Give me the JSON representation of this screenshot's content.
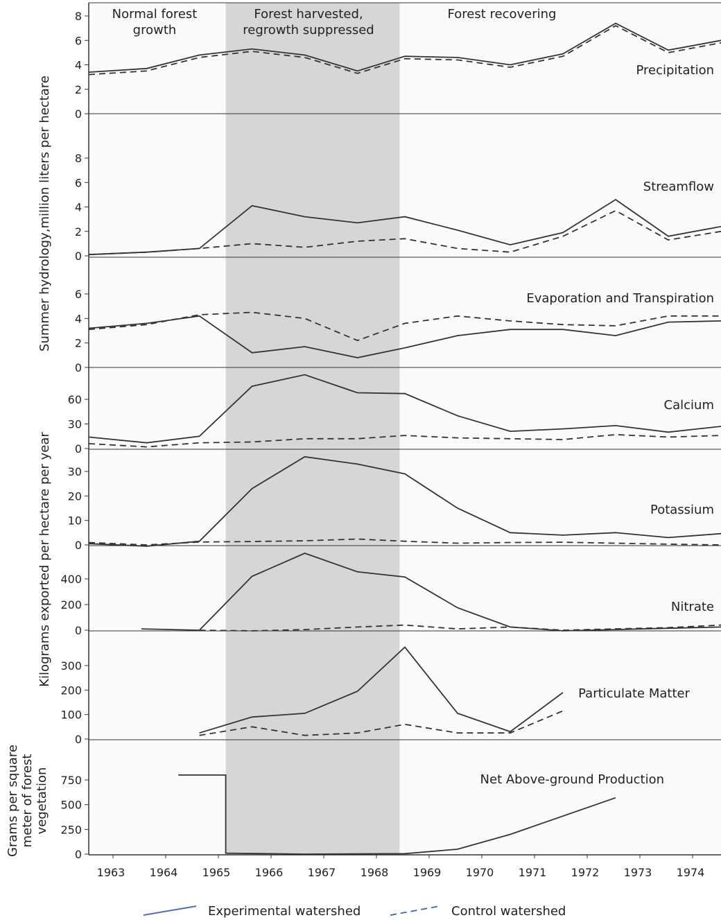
{
  "chart_data": {
    "type": "line",
    "x": [
      1963,
      1964,
      1965,
      1966,
      1967,
      1968,
      1969,
      1970,
      1971,
      1972,
      1973,
      1974
    ],
    "xtick_labels": [
      "1963",
      "1964",
      "1965",
      "1966",
      "1967",
      "1968",
      "1969",
      "1970",
      "1971",
      "1972",
      "1973",
      "1974"
    ],
    "phases": [
      {
        "label_lines": [
          "Normal forest",
          "growth"
        ],
        "start": 1962.5,
        "end": 1965.1,
        "shaded": false
      },
      {
        "label_lines": [
          "Forest harvested,",
          "regrowth suppressed"
        ],
        "start": 1965.1,
        "end": 1968.4,
        "shaded": true
      },
      {
        "label_lines": [
          "Forest recovering"
        ],
        "start": 1968.4,
        "end": 1974.5,
        "shaded": false
      }
    ],
    "y_axis_titles": [
      "Summer hydrology,million liters per hectare",
      "Kilograms exported per hectare per year",
      "Grams per square meter of forest vegetation"
    ],
    "legend": {
      "experimental": "Experimental watershed",
      "control": "Control watershed"
    },
    "panels": [
      {
        "label": "Precipitation",
        "ylim": [
          0,
          9
        ],
        "yticks": [
          0,
          2,
          4,
          6,
          8
        ],
        "experimental": [
          [
            1962.5,
            3.4
          ],
          [
            1963.6,
            3.7
          ],
          [
            1964.6,
            4.8
          ],
          [
            1965.6,
            5.3
          ],
          [
            1966.6,
            4.8
          ],
          [
            1967.6,
            3.5
          ],
          [
            1968.5,
            4.7
          ],
          [
            1969.5,
            4.6
          ],
          [
            1970.5,
            4.0
          ],
          [
            1971.5,
            4.9
          ],
          [
            1972.5,
            7.4
          ],
          [
            1973.5,
            5.2
          ],
          [
            1974.5,
            6.0
          ]
        ],
        "control": [
          [
            1962.5,
            3.2
          ],
          [
            1963.6,
            3.5
          ],
          [
            1964.6,
            4.6
          ],
          [
            1965.6,
            5.1
          ],
          [
            1966.6,
            4.6
          ],
          [
            1967.6,
            3.3
          ],
          [
            1968.5,
            4.5
          ],
          [
            1969.5,
            4.4
          ],
          [
            1970.5,
            3.8
          ],
          [
            1971.5,
            4.7
          ],
          [
            1972.5,
            7.2
          ],
          [
            1973.5,
            5.0
          ],
          [
            1974.5,
            5.8
          ]
        ]
      },
      {
        "label": "Streamflow",
        "ylim": [
          0,
          10
        ],
        "yticks": [
          0,
          2,
          4,
          6,
          8
        ],
        "experimental": [
          [
            1962.5,
            0.1
          ],
          [
            1963.6,
            0.3
          ],
          [
            1964.6,
            0.6
          ],
          [
            1965.6,
            4.1
          ],
          [
            1966.6,
            3.2
          ],
          [
            1967.6,
            2.7
          ],
          [
            1968.5,
            3.2
          ],
          [
            1969.5,
            2.1
          ],
          [
            1970.5,
            0.9
          ],
          [
            1971.5,
            1.9
          ],
          [
            1972.5,
            4.6
          ],
          [
            1973.5,
            1.6
          ],
          [
            1974.5,
            2.4
          ]
        ],
        "control": [
          [
            1962.5,
            0.1
          ],
          [
            1963.6,
            0.3
          ],
          [
            1964.6,
            0.6
          ],
          [
            1965.6,
            1.0
          ],
          [
            1966.6,
            0.7
          ],
          [
            1967.6,
            1.2
          ],
          [
            1968.5,
            1.4
          ],
          [
            1969.5,
            0.6
          ],
          [
            1970.5,
            0.3
          ],
          [
            1971.5,
            1.6
          ],
          [
            1972.5,
            3.7
          ],
          [
            1973.5,
            1.3
          ],
          [
            1974.5,
            2.0
          ]
        ]
      },
      {
        "label": "Evaporation and Transpiration",
        "ylim": [
          0,
          9
        ],
        "yticks": [
          0,
          2,
          4,
          6
        ],
        "experimental": [
          [
            1962.5,
            3.2
          ],
          [
            1963.6,
            3.6
          ],
          [
            1964.6,
            4.2
          ],
          [
            1965.6,
            1.2
          ],
          [
            1966.6,
            1.7
          ],
          [
            1967.6,
            0.8
          ],
          [
            1968.5,
            1.6
          ],
          [
            1969.5,
            2.6
          ],
          [
            1970.5,
            3.1
          ],
          [
            1971.5,
            3.1
          ],
          [
            1972.5,
            2.6
          ],
          [
            1973.5,
            3.7
          ],
          [
            1974.5,
            3.8
          ]
        ],
        "control": [
          [
            1962.5,
            3.1
          ],
          [
            1963.6,
            3.5
          ],
          [
            1964.6,
            4.3
          ],
          [
            1965.6,
            4.5
          ],
          [
            1966.6,
            4.0
          ],
          [
            1967.6,
            2.2
          ],
          [
            1968.5,
            3.6
          ],
          [
            1969.5,
            4.2
          ],
          [
            1970.5,
            3.8
          ],
          [
            1971.5,
            3.5
          ],
          [
            1972.5,
            3.4
          ],
          [
            1973.5,
            4.2
          ],
          [
            1974.5,
            4.2
          ]
        ]
      },
      {
        "label": "Calcium",
        "ylim": [
          0,
          90
        ],
        "yticks": [
          0,
          30,
          60
        ],
        "experimental": [
          [
            1962.5,
            14
          ],
          [
            1963.6,
            7
          ],
          [
            1964.6,
            15
          ],
          [
            1965.6,
            76
          ],
          [
            1966.6,
            90
          ],
          [
            1967.6,
            68
          ],
          [
            1968.5,
            67
          ],
          [
            1969.5,
            40
          ],
          [
            1970.5,
            21
          ],
          [
            1971.5,
            24
          ],
          [
            1972.5,
            28
          ],
          [
            1973.5,
            20
          ],
          [
            1974.5,
            27
          ]
        ],
        "control": [
          [
            1962.5,
            6
          ],
          [
            1963.6,
            2
          ],
          [
            1964.6,
            7
          ],
          [
            1965.6,
            8
          ],
          [
            1966.6,
            12
          ],
          [
            1967.6,
            12
          ],
          [
            1968.5,
            16
          ],
          [
            1969.5,
            13
          ],
          [
            1970.5,
            12
          ],
          [
            1971.5,
            11
          ],
          [
            1972.5,
            17
          ],
          [
            1973.5,
            14
          ],
          [
            1974.5,
            16
          ]
        ]
      },
      {
        "label": "Potassium",
        "ylim": [
          0,
          35
        ],
        "yticks": [
          0,
          10,
          20,
          30
        ],
        "experimental": [
          [
            1962.5,
            0.5
          ],
          [
            1963.6,
            -0.5
          ],
          [
            1964.6,
            1.5
          ],
          [
            1965.6,
            23
          ],
          [
            1966.6,
            36
          ],
          [
            1967.6,
            33
          ],
          [
            1968.5,
            29
          ],
          [
            1969.5,
            15
          ],
          [
            1970.5,
            5
          ],
          [
            1971.5,
            4
          ],
          [
            1972.5,
            5
          ],
          [
            1973.5,
            3
          ],
          [
            1974.5,
            4.6
          ]
        ],
        "control": [
          [
            1962.5,
            1
          ],
          [
            1963.6,
            0
          ],
          [
            1964.6,
            1.2
          ],
          [
            1965.6,
            1.4
          ],
          [
            1966.6,
            1.7
          ],
          [
            1967.6,
            2.4
          ],
          [
            1968.5,
            1.5
          ],
          [
            1969.5,
            0.7
          ],
          [
            1970.5,
            1
          ],
          [
            1971.5,
            1.1
          ],
          [
            1972.5,
            0.7
          ],
          [
            1973.5,
            0.3
          ],
          [
            1974.5,
            0
          ]
        ]
      },
      {
        "label": "Nitrate",
        "ylim": [
          0,
          600
        ],
        "yticks": [
          0,
          200,
          400
        ],
        "experimental": [
          [
            1963.5,
            10
          ],
          [
            1964.6,
            0
          ],
          [
            1965.6,
            420
          ],
          [
            1966.6,
            600
          ],
          [
            1967.6,
            455
          ],
          [
            1968.5,
            415
          ],
          [
            1969.5,
            175
          ],
          [
            1970.5,
            25
          ],
          [
            1971.5,
            -5
          ],
          [
            1972.5,
            5
          ],
          [
            1973.5,
            15
          ],
          [
            1974.5,
            25
          ]
        ],
        "control": [
          [
            1964.6,
            0
          ],
          [
            1965.6,
            -5
          ],
          [
            1966.6,
            5
          ],
          [
            1967.6,
            25
          ],
          [
            1968.5,
            40
          ],
          [
            1969.5,
            10
          ],
          [
            1970.5,
            25
          ],
          [
            1971.5,
            0
          ],
          [
            1972.5,
            10
          ],
          [
            1973.5,
            20
          ],
          [
            1974.5,
            40
          ]
        ]
      },
      {
        "label": "Particulate Matter",
        "ylim": [
          0,
          380
        ],
        "yticks": [
          0,
          100,
          200,
          300
        ],
        "experimental": [
          [
            1964.6,
            25
          ],
          [
            1965.6,
            90
          ],
          [
            1966.6,
            105
          ],
          [
            1967.6,
            195
          ],
          [
            1968.5,
            375
          ],
          [
            1969.5,
            105
          ],
          [
            1970.5,
            30
          ],
          [
            1971.5,
            190
          ]
        ],
        "control": [
          [
            1964.6,
            15
          ],
          [
            1965.6,
            50
          ],
          [
            1966.6,
            15
          ],
          [
            1967.6,
            25
          ],
          [
            1968.5,
            60
          ],
          [
            1969.5,
            25
          ],
          [
            1970.5,
            25
          ],
          [
            1971.5,
            115
          ]
        ]
      },
      {
        "label": "Net Above-ground Production",
        "ylim": [
          0,
          1000
        ],
        "yticks": [
          0,
          250,
          500,
          750
        ],
        "ytick_labels": [
          "0",
          "250",
          "500",
          "750"
        ],
        "experimental": [
          [
            1964.2,
            800
          ],
          [
            1965.1,
            800
          ],
          [
            1965.1,
            10
          ],
          [
            1966.6,
            0
          ],
          [
            1968.5,
            5
          ],
          [
            1969.5,
            50
          ],
          [
            1970.5,
            200
          ],
          [
            1972.5,
            570
          ]
        ]
      }
    ]
  }
}
